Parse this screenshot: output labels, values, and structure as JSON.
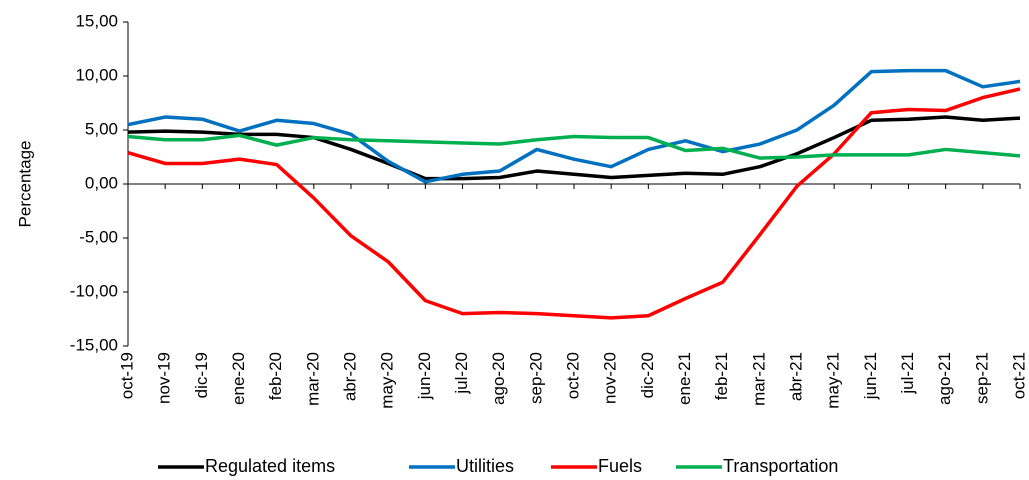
{
  "chart_data": {
    "type": "line",
    "y_axis_label": "Percentage",
    "categories": [
      "oct-19",
      "nov-19",
      "dic-19",
      "ene-20",
      "feb-20",
      "mar-20",
      "abr-20",
      "may-20",
      "jun-20",
      "jul-20",
      "ago-20",
      "sep-20",
      "oct-20",
      "nov-20",
      "dic-20",
      "ene-21",
      "feb-21",
      "mar-21",
      "abr-21",
      "may-21",
      "jun-21",
      "jul-21",
      "ago-21",
      "sep-21",
      "oct-21"
    ],
    "series": [
      {
        "name": "Regulated items",
        "color": "#000000",
        "values": [
          4.8,
          4.9,
          4.8,
          4.6,
          4.6,
          4.3,
          3.2,
          1.9,
          0.5,
          0.5,
          0.6,
          1.2,
          0.9,
          0.6,
          0.8,
          1.0,
          0.9,
          1.6,
          2.8,
          4.3,
          5.9,
          6.0,
          6.2,
          5.9,
          6.1
        ]
      },
      {
        "name": "Utilities",
        "color": "#0070c0",
        "values": [
          5.5,
          6.2,
          6.0,
          4.9,
          5.9,
          5.6,
          4.6,
          2.1,
          0.2,
          0.9,
          1.2,
          3.2,
          2.3,
          1.6,
          3.2,
          4.0,
          3.0,
          3.7,
          5.0,
          7.3,
          10.4,
          10.5,
          10.5,
          9.0,
          9.5
        ]
      },
      {
        "name": "Fuels",
        "color": "#ff0000",
        "values": [
          2.9,
          1.9,
          1.9,
          2.3,
          1.8,
          -1.3,
          -4.8,
          -7.2,
          -10.8,
          -12.0,
          -11.9,
          -12.0,
          -12.2,
          -12.4,
          -12.2,
          -10.6,
          -9.1,
          -4.7,
          -0.2,
          2.8,
          6.6,
          6.9,
          6.8,
          8.0,
          8.8
        ]
      },
      {
        "name": "Transportation",
        "color": "#00b050",
        "values": [
          4.4,
          4.1,
          4.1,
          4.5,
          3.6,
          4.3,
          4.1,
          4.0,
          3.9,
          3.8,
          3.7,
          4.1,
          4.4,
          4.3,
          4.3,
          3.1,
          3.3,
          2.4,
          2.5,
          2.7,
          2.7,
          2.7,
          3.2,
          2.9,
          2.6
        ]
      }
    ],
    "ylim": [
      -15,
      15
    ],
    "yticks": [
      {
        "value": -15,
        "label": "-15,00"
      },
      {
        "value": -10,
        "label": "-10,00"
      },
      {
        "value": -5,
        "label": "-5,00"
      },
      {
        "value": 0,
        "label": "0,00"
      },
      {
        "value": 5,
        "label": "5,00"
      },
      {
        "value": 10,
        "label": "10,00"
      },
      {
        "value": 15,
        "label": "15,00"
      }
    ],
    "grid": false,
    "legend": "bottom"
  }
}
